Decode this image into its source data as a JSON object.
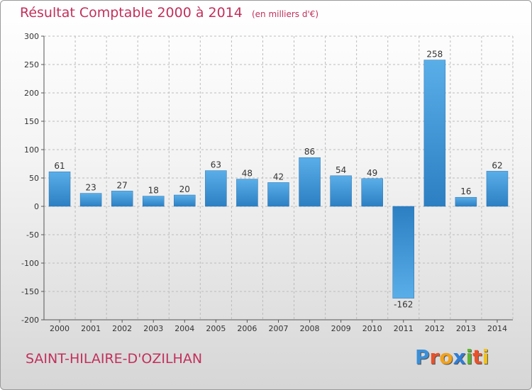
{
  "title": "Résultat Comptable 2000 à 2014",
  "subtitle": "(en milliers d'€)",
  "commune": "SAINT-HILAIRE-D'OZILHAN",
  "logo": {
    "text": "Proxiti",
    "letters": [
      {
        "ch": "P",
        "color": "#3a8fd8"
      },
      {
        "ch": "r",
        "color": "#e8522a"
      },
      {
        "ch": "o",
        "color": "#f2a21b"
      },
      {
        "ch": "x",
        "color": "#2f7ed6"
      },
      {
        "ch": "i",
        "color": "#5cb82e"
      },
      {
        "ch": "t",
        "color": "#e8522a"
      },
      {
        "ch": "i",
        "color": "#f2c21b"
      }
    ]
  },
  "colors": {
    "title": "#c2305c",
    "bar_light": "#5aaee8",
    "bar_dark": "#2c7fc2",
    "grid": "#bbbbbb",
    "axis_text": "#333333"
  },
  "chart_data": {
    "type": "bar",
    "categories": [
      "2000",
      "2001",
      "2002",
      "2003",
      "2004",
      "2005",
      "2006",
      "2007",
      "2008",
      "2009",
      "2010",
      "2011",
      "2012",
      "2013",
      "2014"
    ],
    "values": [
      61,
      23,
      27,
      18,
      20,
      63,
      48,
      42,
      86,
      54,
      49,
      -162,
      258,
      16,
      62
    ],
    "data_labels": [
      "61",
      "23",
      "27",
      "18",
      "20",
      "63",
      "48",
      "42",
      "86",
      "54",
      "49",
      "-162",
      "258",
      "16",
      "62"
    ],
    "y_ticks": [
      300,
      250,
      200,
      150,
      100,
      50,
      0,
      -50,
      -100,
      -150,
      -200
    ],
    "y_tick_labels": [
      "300",
      "250",
      "200",
      "150",
      "100",
      "50",
      "0",
      "-50",
      "-100",
      "-150",
      "-200"
    ],
    "ylim": [
      -200,
      300
    ],
    "grid": true,
    "xlabel": "",
    "ylabel": ""
  }
}
